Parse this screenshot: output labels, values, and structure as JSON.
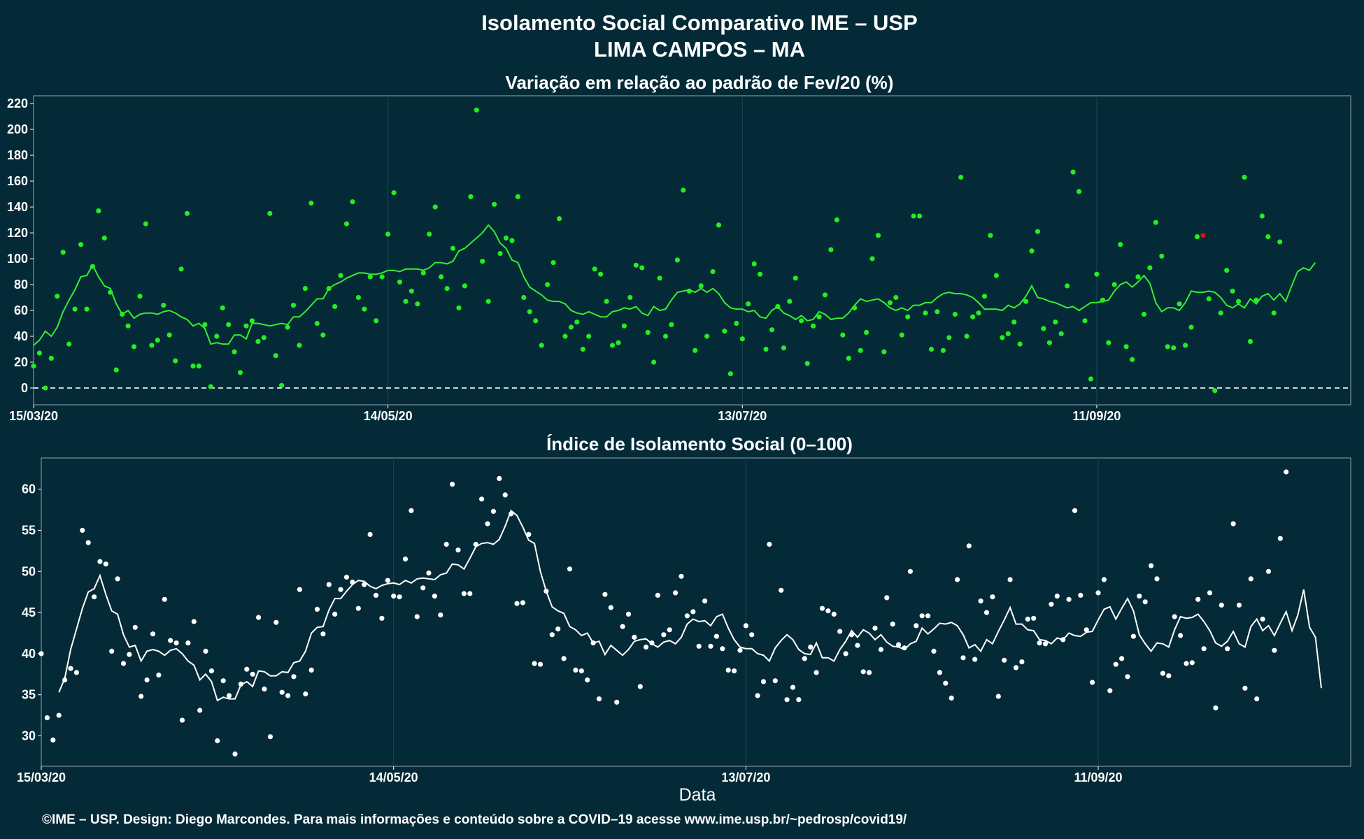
{
  "title_line1": "Isolamento Social Comparativo IME – USP",
  "title_line2": "LIMA CAMPOS – MA",
  "xlabel": "Data",
  "footer": "©IME – USP. Design: Diego Marcondes. Para mais informações e conteúdo sobre a COVID–19 acesse www.ime.usp.br/~pedrosp/covid19/",
  "colors": {
    "background": "#032a36",
    "variation_points": "#22ee22",
    "variation_line": "#33ee33",
    "negative_point": "#dd1111",
    "index_points": "#ffffff",
    "index_line": "#ffffff"
  },
  "chart_data": [
    {
      "type": "scatter",
      "title": "Variação em relação ao padrão de Fev/20 (%)",
      "x_start": "2020-03-15",
      "x_end": "2020-10-24",
      "x_ticks": [
        "15/03/20",
        "14/05/20",
        "13/07/20",
        "11/09/20"
      ],
      "ylim": [
        -13,
        226
      ],
      "y_ticks": [
        0,
        20,
        40,
        60,
        80,
        100,
        120,
        140,
        160,
        180,
        200,
        220
      ],
      "reference_line": 0,
      "series": [
        {
          "kind": "points",
          "values": [
            17,
            27,
            0,
            23,
            71,
            105,
            34,
            61,
            111,
            61,
            94,
            137,
            116,
            74,
            14,
            57,
            48,
            32,
            71,
            127,
            33,
            37,
            64,
            41,
            21,
            92,
            135,
            17,
            17,
            49,
            1,
            40,
            62,
            49,
            28,
            12,
            48,
            52,
            36,
            39,
            135,
            25,
            2,
            47,
            64,
            33,
            77,
            143,
            50,
            41,
            77,
            63,
            87,
            127,
            144,
            70,
            61,
            86,
            52,
            86,
            119,
            151,
            82,
            67,
            75,
            65,
            89,
            119,
            140,
            86,
            77,
            108,
            62,
            79,
            148,
            215,
            98,
            67,
            142,
            104,
            116,
            114,
            148,
            70,
            59,
            52,
            33,
            80,
            97,
            131,
            40,
            47,
            51,
            30,
            40,
            92,
            88,
            67,
            33,
            35,
            48,
            70,
            95,
            93,
            43,
            20,
            85,
            40,
            49,
            99,
            153,
            75,
            29,
            79,
            40,
            90,
            126,
            44,
            11,
            50,
            38,
            65,
            96,
            88,
            30,
            45,
            63,
            31,
            67,
            85,
            52,
            19,
            48,
            55,
            72,
            107,
            130,
            41,
            23,
            62,
            29,
            43,
            100,
            118,
            28,
            66,
            70,
            41,
            55,
            133,
            133,
            58,
            30,
            59,
            29,
            39,
            57,
            163,
            40,
            55,
            58,
            71,
            118,
            87,
            39,
            42,
            51,
            34,
            67,
            106,
            121,
            46,
            35,
            51,
            42,
            79,
            167,
            152,
            52,
            7,
            88,
            68,
            35,
            80,
            111,
            32,
            22,
            86,
            57,
            93,
            128,
            102,
            32,
            31,
            65,
            33,
            47,
            117,
            118,
            69,
            -2,
            58,
            91,
            75,
            67,
            163,
            36,
            68,
            133,
            117,
            58,
            113
          ],
          "negative_indices": [
            198
          ]
        },
        {
          "kind": "line",
          "start_index": 0,
          "values": [
            33,
            37,
            44,
            40,
            47,
            59,
            68,
            76,
            86,
            87,
            95,
            86,
            79,
            77,
            65,
            57,
            60,
            54,
            57,
            58,
            58,
            57,
            59,
            60,
            58,
            55,
            53,
            48,
            50,
            46,
            34,
            35,
            34,
            34,
            41,
            41,
            38,
            50,
            50,
            49,
            48,
            49,
            50,
            49,
            55,
            55,
            59,
            64,
            69,
            69,
            77,
            80,
            82,
            85,
            87,
            89,
            89,
            88,
            88,
            89,
            91,
            91,
            90,
            92,
            92,
            92,
            91,
            93,
            97,
            97,
            96,
            98,
            106,
            108,
            112,
            116,
            120,
            126,
            121,
            112,
            108,
            99,
            97,
            86,
            78,
            75,
            72,
            68,
            67,
            67,
            65,
            60,
            58,
            57,
            59,
            57,
            55,
            55,
            59,
            60,
            62,
            61,
            63,
            58,
            56,
            63,
            60,
            61,
            68,
            74,
            75,
            76,
            74,
            77,
            74,
            77,
            73,
            66,
            62,
            61,
            61,
            59,
            60,
            55,
            54,
            60,
            63,
            58,
            56,
            53,
            56,
            52,
            53,
            59,
            57,
            53,
            54,
            54,
            58,
            64,
            69,
            67,
            68,
            69,
            66,
            62,
            60,
            62,
            60,
            64,
            64,
            66,
            66,
            70,
            73,
            74,
            73,
            73,
            72,
            70,
            66,
            61,
            61,
            61,
            60,
            64,
            62,
            65,
            71,
            79,
            70,
            69,
            67,
            66,
            64,
            62,
            63,
            60,
            63,
            66,
            66,
            67,
            68,
            75,
            80,
            82,
            78,
            82,
            87,
            81,
            66,
            59,
            62,
            62,
            60,
            66,
            75,
            74,
            74,
            75,
            74,
            70,
            64,
            62,
            65,
            62,
            69,
            65,
            71,
            73,
            68,
            73,
            67,
            79,
            90,
            93,
            91,
            97
          ]
        }
      ]
    },
    {
      "type": "scatter",
      "title": "Índice de Isolamento Social (0–100)",
      "x_start": "2020-03-15",
      "x_end": "2020-10-24",
      "x_ticks": [
        "15/03/20",
        "14/05/20",
        "13/07/20",
        "11/09/20"
      ],
      "ylim": [
        26.3,
        63.8
      ],
      "y_ticks": [
        30,
        35,
        40,
        45,
        50,
        55,
        60
      ],
      "series": [
        {
          "kind": "points",
          "values": [
            40.0,
            32.2,
            29.5,
            32.5,
            36.8,
            38.2,
            37.7,
            55.0,
            53.5,
            46.9,
            51.2,
            50.9,
            40.3,
            49.1,
            38.8,
            39.9,
            43.2,
            34.8,
            36.8,
            42.4,
            37.4,
            46.6,
            41.6,
            41.3,
            31.9,
            41.3,
            43.9,
            33.1,
            40.3,
            37.9,
            29.4,
            36.7,
            34.9,
            27.8,
            36.3,
            38.1,
            37.5,
            44.4,
            35.7,
            29.9,
            43.8,
            35.3,
            34.9,
            37.2,
            47.8,
            35.1,
            38.0,
            45.4,
            42.4,
            48.4,
            44.8,
            47.8,
            49.3,
            48.7,
            45.5,
            48.4,
            54.5,
            47.1,
            44.3,
            48.9,
            47.0,
            46.9,
            51.5,
            57.4,
            44.5,
            48.0,
            49.8,
            47.0,
            44.7,
            53.3,
            60.6,
            52.6,
            47.3,
            47.3,
            53.3,
            58.8,
            55.8,
            57.3,
            61.3,
            59.3,
            57.0,
            46.1,
            46.2,
            54.5,
            38.8,
            38.7,
            47.6,
            42.3,
            43.0,
            39.4,
            50.3,
            38.0,
            37.9,
            36.8,
            41.3,
            34.5,
            47.2,
            45.6,
            34.1,
            43.3,
            44.8,
            42.0,
            36.0,
            40.8,
            41.3,
            47.1,
            42.3,
            42.9,
            47.4,
            49.4,
            44.6,
            45.1,
            40.9,
            46.4,
            40.9,
            42.1,
            40.6,
            38.0,
            37.9,
            40.4,
            43.4,
            42.3,
            34.9,
            36.6,
            53.3,
            36.7,
            47.7,
            34.4,
            35.9,
            34.4,
            39.4,
            40.8,
            37.7,
            45.5,
            45.2,
            44.8,
            42.7,
            40.0,
            42.3,
            41.0,
            37.8,
            37.7,
            43.1,
            40.5,
            46.8,
            43.6,
            41.1,
            40.7,
            50.0,
            43.4,
            44.6,
            44.6,
            40.3,
            37.7,
            36.4,
            34.6,
            49.0,
            39.5,
            53.1,
            39.3,
            46.4,
            45.0,
            46.9,
            34.8,
            39.2,
            49.0,
            38.3,
            39.0,
            44.2,
            44.3,
            41.3,
            41.2,
            46.0,
            47.0,
            41.7,
            46.6,
            57.4,
            47.1,
            42.9,
            36.5,
            47.4,
            49.0,
            35.5,
            38.7,
            39.4,
            37.2,
            42.1,
            47.0,
            46.3,
            50.7,
            49.1,
            37.6,
            37.3,
            44.5,
            42.2,
            38.8,
            38.9,
            46.6,
            40.6,
            47.4,
            33.4,
            45.9,
            40.6,
            55.8,
            45.9,
            35.8,
            49.1,
            34.5,
            44.2,
            50.0,
            40.4,
            54.0,
            62.1
          ]
        },
        {
          "kind": "line",
          "start_index": 3,
          "values": [
            35.3,
            37.0,
            40.5,
            43.0,
            45.5,
            47.5,
            47.9,
            49.5,
            47.2,
            45.2,
            44.8,
            42.3,
            40.8,
            41.0,
            39.1,
            40.3,
            40.5,
            40.3,
            39.8,
            40.4,
            40.6,
            40.0,
            39.1,
            38.6,
            36.8,
            37.5,
            36.6,
            34.3,
            34.7,
            34.5,
            34.5,
            36.2,
            36.6,
            36.0,
            37.9,
            37.8,
            37.3,
            37.3,
            37.8,
            37.7,
            38.9,
            39.1,
            40.3,
            42.5,
            43.2,
            43.3,
            45.3,
            46.7,
            46.7,
            47.6,
            48.4,
            48.9,
            48.8,
            48.2,
            47.9,
            48.3,
            48.5,
            48.6,
            48.4,
            48.9,
            48.6,
            49.1,
            49.2,
            49.1,
            49.0,
            49.6,
            49.8,
            50.9,
            50.8,
            50.3,
            51.6,
            53.0,
            53.4,
            53.5,
            53.3,
            53.9,
            55.5,
            57.4,
            56.8,
            55.4,
            53.8,
            53.4,
            50.0,
            47.6,
            45.7,
            45.2,
            44.9,
            43.3,
            42.9,
            42.2,
            42.5,
            41.3,
            41.5,
            39.9,
            41.0,
            40.4,
            39.8,
            40.5,
            41.5,
            41.7,
            41.8,
            41.2,
            40.8,
            41.4,
            41.6,
            41.2,
            42.0,
            43.6,
            44.2,
            43.9,
            44.0,
            43.4,
            44.5,
            44.8,
            43.1,
            41.7,
            40.8,
            40.6,
            40.6,
            40.0,
            39.8,
            39.1,
            40.7,
            41.6,
            42.3,
            41.7,
            40.5,
            40.0,
            39.9,
            41.3,
            39.5,
            39.5,
            39.1,
            40.5,
            41.5,
            42.8,
            42.0,
            42.9,
            42.5,
            41.7,
            42.3,
            41.4,
            40.9,
            40.8,
            40.5,
            41.2,
            41.5,
            43.1,
            42.4,
            43.0,
            43.7,
            43.6,
            43.8,
            43.4,
            42.3,
            40.7,
            41.1,
            40.3,
            41.7,
            41.2,
            42.7,
            44.1,
            45.6,
            43.6,
            43.6,
            42.9,
            42.8,
            41.7,
            41.6,
            41.2,
            41.9,
            41.7,
            42.5,
            42.2,
            42.1,
            42.6,
            42.7,
            44.1,
            45.4,
            45.7,
            44.2,
            45.5,
            46.7,
            45.2,
            42.3,
            41.2,
            40.3,
            41.3,
            41.2,
            40.8,
            42.9,
            44.5,
            44.3,
            44.4,
            44.8,
            43.9,
            42.8,
            41.3,
            40.9,
            41.5,
            42.7,
            41.2,
            40.8,
            43.3,
            44.2,
            42.8,
            43.4,
            42.2,
            43.7,
            45.1,
            42.8,
            44.7,
            47.8,
            43.2,
            42.0,
            35.8
          ]
        }
      ]
    }
  ]
}
